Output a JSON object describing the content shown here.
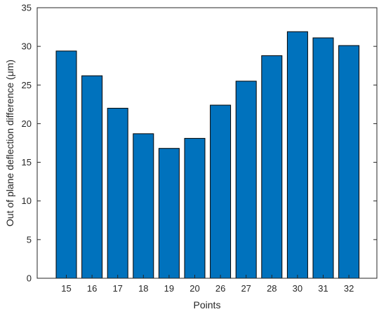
{
  "chart_data": {
    "type": "bar",
    "categories": [
      "15",
      "16",
      "17",
      "18",
      "19",
      "20",
      "26",
      "27",
      "28",
      "30",
      "31",
      "32"
    ],
    "values": [
      29.4,
      26.2,
      22.0,
      18.7,
      16.8,
      18.1,
      22.4,
      25.5,
      28.8,
      31.9,
      31.1,
      30.1
    ],
    "title": "",
    "xlabel": "Points",
    "ylabel": "Out of plane deflection difference (μm)",
    "ylim": [
      0,
      35
    ],
    "yticks": [
      0,
      5,
      10,
      15,
      20,
      25,
      30,
      35
    ],
    "grid": false,
    "bar_color": "#0072BD",
    "edge_color": "#000000"
  }
}
